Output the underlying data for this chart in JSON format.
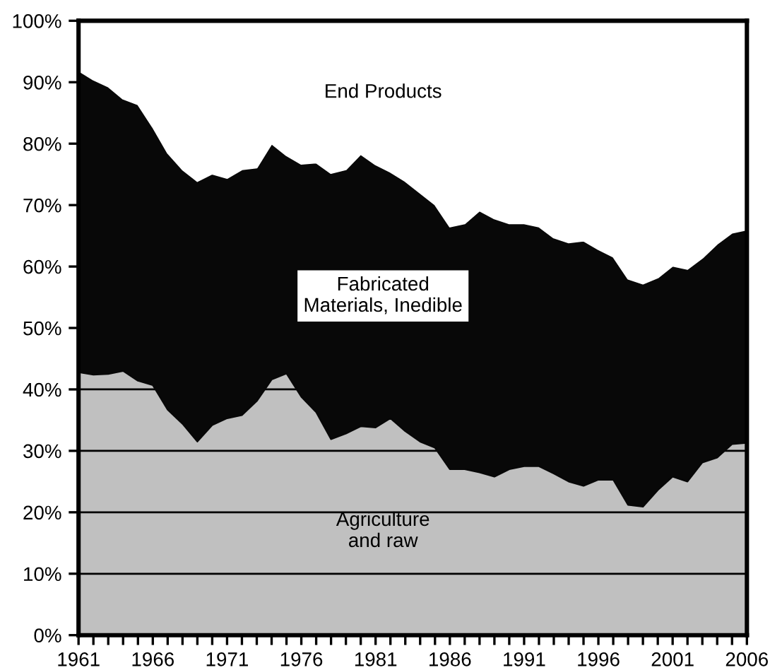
{
  "chart_data": {
    "type": "area",
    "stacked": true,
    "grid": "y",
    "legend": false,
    "x": [
      1961,
      1962,
      1963,
      1964,
      1965,
      1966,
      1967,
      1968,
      1969,
      1970,
      1971,
      1972,
      1973,
      1974,
      1975,
      1976,
      1977,
      1978,
      1979,
      1980,
      1981,
      1982,
      1983,
      1984,
      1985,
      1986,
      1987,
      1988,
      1989,
      1990,
      1991,
      1992,
      1993,
      1994,
      1995,
      1996,
      1997,
      1998,
      1999,
      2000,
      2001,
      2002,
      2003,
      2004,
      2005,
      2006
    ],
    "series": [
      {
        "name": "Agriculture\nand raw",
        "color": "#c0c0c0",
        "values": [
          42.8,
          42.4,
          42.5,
          43.0,
          41.4,
          40.7,
          36.7,
          34.4,
          31.5,
          34.2,
          35.3,
          35.8,
          38.1,
          41.6,
          42.6,
          38.8,
          36.3,
          31.9,
          32.8,
          34.0,
          33.8,
          35.3,
          33.2,
          31.5,
          30.5,
          27.0,
          27.0,
          26.5,
          25.8,
          27.0,
          27.5,
          27.5,
          26.3,
          25.0,
          24.3,
          25.3,
          25.3,
          21.2,
          20.9,
          23.6,
          25.8,
          25.0,
          28.1,
          28.9,
          31.1,
          31.3
        ]
      },
      {
        "name": "Fabricated\nMaterials, Inedible",
        "color": "#080808",
        "values": [
          49.1,
          48.0,
          46.8,
          44.3,
          45.0,
          42.0,
          41.8,
          41.4,
          42.4,
          40.9,
          39.1,
          40.0,
          38.0,
          38.4,
          35.5,
          37.9,
          40.6,
          43.3,
          43.0,
          44.3,
          42.8,
          40.1,
          40.7,
          40.5,
          39.6,
          39.5,
          40.0,
          42.6,
          42.0,
          40.0,
          39.5,
          39.0,
          38.4,
          38.9,
          39.9,
          37.5,
          36.3,
          36.8,
          36.3,
          34.6,
          34.3,
          34.6,
          33.3,
          34.8,
          34.4,
          34.7
        ]
      },
      {
        "name": "End Products",
        "color": "#ffffff",
        "values": [
          8.1,
          9.6,
          10.7,
          12.7,
          13.6,
          17.3,
          21.5,
          24.2,
          26.1,
          24.9,
          25.6,
          24.2,
          23.9,
          20.0,
          21.9,
          23.3,
          23.1,
          24.8,
          24.2,
          21.7,
          23.4,
          24.6,
          26.1,
          28.0,
          29.9,
          33.5,
          33.0,
          30.9,
          32.2,
          33.0,
          33.0,
          33.5,
          35.3,
          36.1,
          35.8,
          37.2,
          38.4,
          42.0,
          42.8,
          41.8,
          39.9,
          40.4,
          38.6,
          36.3,
          34.5,
          34.0
        ]
      }
    ],
    "xlim": [
      1961,
      2006
    ],
    "xticks": [
      1961,
      {
        "value": 1962,
        "label": null
      },
      {
        "value": 1963,
        "label": null
      },
      {
        "value": 1964,
        "label": null
      },
      {
        "value": 1965,
        "label": null
      },
      1966,
      {
        "value": 1967,
        "label": null
      },
      {
        "value": 1968,
        "label": null
      },
      {
        "value": 1969,
        "label": null
      },
      {
        "value": 1970,
        "label": null
      },
      1971,
      {
        "value": 1972,
        "label": null
      },
      {
        "value": 1973,
        "label": null
      },
      {
        "value": 1974,
        "label": null
      },
      {
        "value": 1975,
        "label": null
      },
      1976,
      {
        "value": 1977,
        "label": null
      },
      {
        "value": 1978,
        "label": null
      },
      {
        "value": 1979,
        "label": null
      },
      {
        "value": 1980,
        "label": null
      },
      1981,
      {
        "value": 1982,
        "label": null
      },
      {
        "value": 1983,
        "label": null
      },
      {
        "value": 1984,
        "label": null
      },
      {
        "value": 1985,
        "label": null
      },
      1986,
      {
        "value": 1987,
        "label": null
      },
      {
        "value": 1988,
        "label": null
      },
      {
        "value": 1989,
        "label": null
      },
      {
        "value": 1990,
        "label": null
      },
      1991,
      {
        "value": 1992,
        "label": null
      },
      {
        "value": 1993,
        "label": null
      },
      {
        "value": 1994,
        "label": null
      },
      {
        "value": 1995,
        "label": null
      },
      1996,
      {
        "value": 1997,
        "label": null
      },
      {
        "value": 1998,
        "label": null
      },
      {
        "value": 1999,
        "label": null
      },
      {
        "value": 2000,
        "label": null
      },
      2001,
      {
        "value": 2002,
        "label": null
      },
      {
        "value": 2003,
        "label": null
      },
      {
        "value": 2004,
        "label": null
      },
      {
        "value": 2005,
        "label": null
      },
      2006
    ],
    "ylim": [
      0,
      100
    ],
    "yticks": [
      {
        "value": 0,
        "label": "0%"
      },
      {
        "value": 10,
        "label": "10%"
      },
      {
        "value": 20,
        "label": "20%"
      },
      {
        "value": 30,
        "label": "30%"
      },
      {
        "value": 40,
        "label": "40%"
      },
      {
        "value": 50,
        "label": "50%"
      },
      {
        "value": 60,
        "label": "60%"
      },
      {
        "value": 70,
        "label": "70%"
      },
      {
        "value": 80,
        "label": "80%"
      },
      {
        "value": 90,
        "label": "90%"
      },
      {
        "value": 100,
        "label": "100%"
      }
    ]
  }
}
